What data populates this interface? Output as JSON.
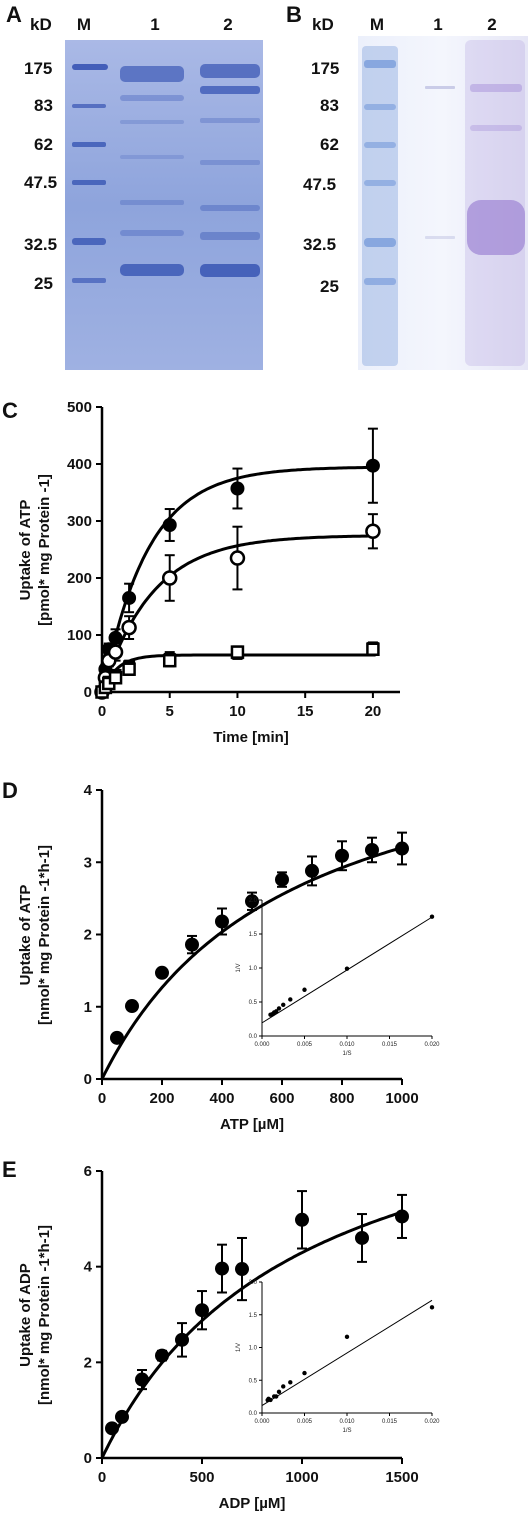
{
  "gels": [
    {
      "panel": "A",
      "unit": "kD",
      "lanes": [
        "M",
        "1",
        "2"
      ],
      "markers": [
        "175",
        "83",
        "62",
        "47.5",
        "32.5",
        "25"
      ],
      "colors": {
        "bg": "#8da4dc",
        "band": "#3d5ab6"
      }
    },
    {
      "panel": "B",
      "unit": "kD",
      "lanes": [
        "M",
        "1",
        "2"
      ],
      "markers": [
        "175",
        "83",
        "62",
        "47.5",
        "32.5",
        "25"
      ],
      "colors": {
        "bg": "#e9eefb",
        "marker": "#6f95d8",
        "band": "#a18ad6"
      }
    }
  ],
  "chart_data": [
    {
      "panel": "C",
      "type": "line",
      "xlabel": "Time [min]",
      "ylabel_line1": "Uptake of ATP",
      "ylabel_line2": "[pmol* mg Protein -1]",
      "xlim": [
        0,
        22
      ],
      "ylim": [
        0,
        500
      ],
      "xticks": [
        0,
        5,
        10,
        15,
        20
      ],
      "yticks": [
        0,
        100,
        200,
        300,
        400,
        500
      ],
      "series": [
        {
          "marker": "filled-circle",
          "x": [
            0,
            0.25,
            0.5,
            1,
            2,
            5,
            10,
            20
          ],
          "y": [
            0,
            40,
            75,
            95,
            165,
            293,
            357,
            397
          ],
          "err": [
            0,
            8,
            10,
            15,
            25,
            28,
            35,
            65
          ],
          "fit": {
            "vmax": 395,
            "k": 0.3,
            "lag": 0.5
          }
        },
        {
          "marker": "open-circle",
          "x": [
            0,
            0.25,
            0.5,
            1,
            2,
            5,
            10,
            20
          ],
          "y": [
            0,
            25,
            55,
            70,
            113,
            200,
            235,
            282
          ],
          "err": [
            0,
            8,
            10,
            15,
            20,
            40,
            55,
            30
          ],
          "fit": {
            "vmax": 275,
            "k": 0.27,
            "lag": 0.0
          }
        },
        {
          "marker": "filled-square",
          "x": [
            0,
            0.25,
            0.5,
            1,
            2,
            5,
            10,
            20
          ],
          "y": [
            0,
            10,
            18,
            30,
            45,
            58,
            68,
            77
          ],
          "err": [
            0,
            4,
            5,
            6,
            10,
            12,
            10,
            10
          ],
          "fit": {
            "vmax": 65,
            "k": 0.9,
            "lag": 0.0
          }
        },
        {
          "marker": "open-square",
          "x": [
            0,
            0.25,
            0.5,
            1,
            2,
            5,
            10,
            20
          ],
          "y": [
            0,
            8,
            15,
            25,
            40,
            55,
            70,
            75
          ],
          "err": [
            0,
            4,
            5,
            6,
            10,
            10,
            10,
            10
          ],
          "fit": null
        }
      ]
    },
    {
      "panel": "D",
      "type": "scatter",
      "xlabel": "ATP [µM]",
      "ylabel_line1": "Uptake of ATP",
      "ylabel_line2": "[nmol* mg Protein -1*h-1]",
      "xlim": [
        0,
        1000
      ],
      "ylim": [
        0,
        4
      ],
      "xticks": [
        0,
        200,
        400,
        600,
        800,
        1000
      ],
      "yticks": [
        0,
        1,
        2,
        3,
        4
      ],
      "series": [
        {
          "marker": "filled-circle",
          "x": [
            50,
            100,
            200,
            300,
            400,
            500,
            600,
            700,
            800,
            900,
            1000
          ],
          "y": [
            0.57,
            1.01,
            1.47,
            1.86,
            2.18,
            2.46,
            2.76,
            2.88,
            3.09,
            3.17,
            3.19
          ],
          "err": [
            0.03,
            0.04,
            0.05,
            0.12,
            0.18,
            0.12,
            0.1,
            0.2,
            0.2,
            0.17,
            0.22
          ],
          "fit": {
            "vmax": 5.19,
            "km": 620
          }
        }
      ],
      "inset": {
        "type": "scatter",
        "xlabel": "1/S",
        "ylabel": "1/V",
        "xlim": [
          0,
          0.02
        ],
        "ylim": [
          0,
          2
        ],
        "xticks": [
          "0.000",
          "0.005",
          "0.010",
          "0.015",
          "0.020"
        ],
        "yticks": [
          "0.0",
          "0.5",
          "1.0",
          "1.5",
          "2.0"
        ],
        "x": [
          0.001,
          0.00111,
          0.00125,
          0.00143,
          0.00167,
          0.002,
          0.0025,
          0.00333,
          0.005,
          0.01,
          0.02
        ],
        "y": [
          0.313,
          0.315,
          0.323,
          0.347,
          0.362,
          0.406,
          0.459,
          0.537,
          0.68,
          0.99,
          1.754
        ],
        "line": [
          [
            0.0,
            0.193
          ],
          [
            0.02,
            1.748
          ]
        ]
      }
    },
    {
      "panel": "E",
      "type": "scatter",
      "xlabel": "ADP [µM]",
      "ylabel_line1": "Uptake of ADP",
      "ylabel_line2": "[nmol* mg Protein -1*h-1]",
      "xlim": [
        0,
        1500
      ],
      "ylim": [
        0,
        6
      ],
      "xticks": [
        0,
        500,
        1000,
        1500
      ],
      "yticks": [
        0,
        2,
        4,
        6
      ],
      "series": [
        {
          "marker": "filled-circle",
          "x": [
            50,
            100,
            200,
            300,
            400,
            500,
            600,
            700,
            1000,
            1300,
            1500
          ],
          "y": [
            0.62,
            0.86,
            1.64,
            2.14,
            2.47,
            3.09,
            3.96,
            3.95,
            4.98,
            4.6,
            5.05
          ],
          "err": [
            0.05,
            0.06,
            0.2,
            0.1,
            0.35,
            0.4,
            0.5,
            0.65,
            0.6,
            0.5,
            0.45
          ],
          "fit": {
            "vmax": 8.5,
            "km": 980
          }
        }
      ],
      "inset": {
        "type": "scatter",
        "xlabel": "1/S",
        "ylabel": "1/V",
        "xlim": [
          0,
          0.02
        ],
        "ylim": [
          0,
          2
        ],
        "xticks": [
          "0.000",
          "0.005",
          "0.010",
          "0.015",
          "0.020"
        ],
        "yticks": [
          "0.0",
          "0.5",
          "1.0",
          "1.5",
          "2.0"
        ],
        "x": [
          0.000667,
          0.000769,
          0.001,
          0.00143,
          0.00167,
          0.002,
          0.0025,
          0.00333,
          0.005,
          0.01,
          0.02
        ],
        "y": [
          0.198,
          0.217,
          0.2,
          0.253,
          0.252,
          0.323,
          0.405,
          0.468,
          0.609,
          1.163,
          1.613
        ],
        "line": [
          [
            0.0,
            0.113
          ],
          [
            0.02,
            1.72
          ]
        ]
      }
    }
  ]
}
